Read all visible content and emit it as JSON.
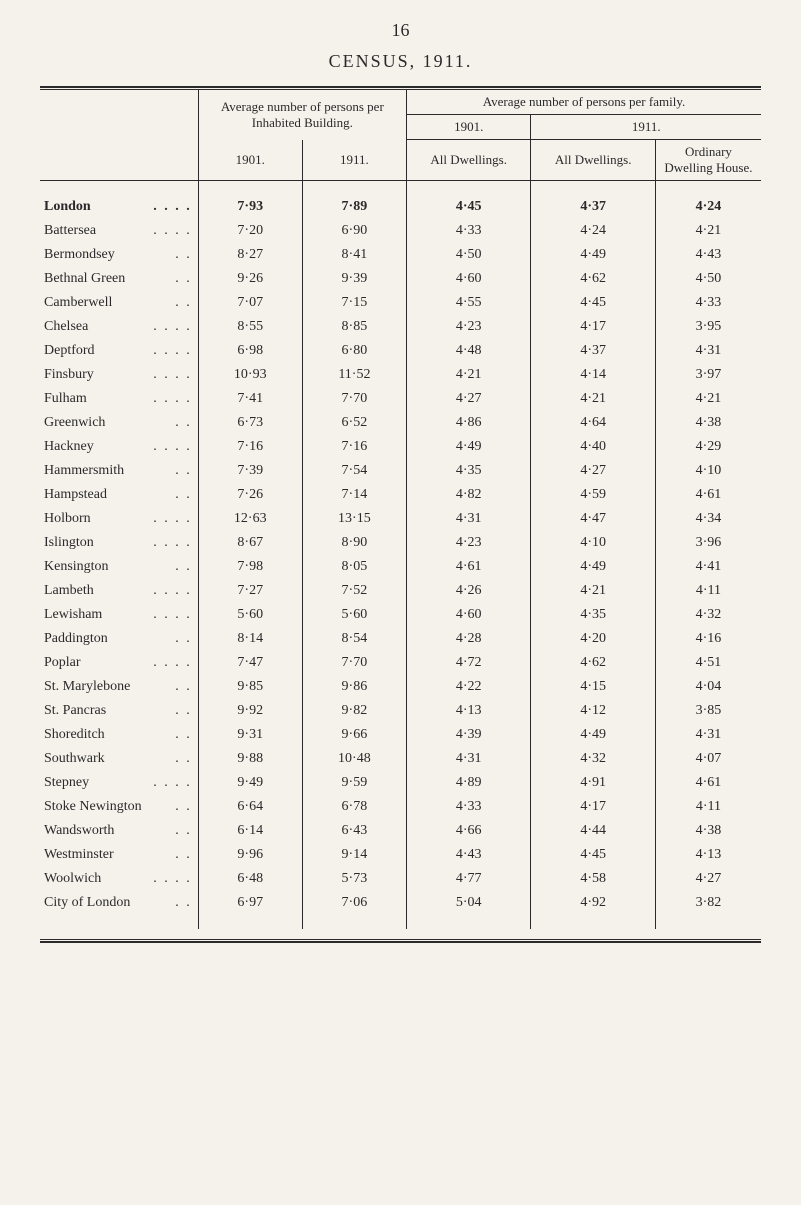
{
  "page_number": "16",
  "title": "CENSUS, 1911.",
  "headers": {
    "avg_persons": "Average number of persons per Inhabited Building.",
    "avg_family": "Average number of persons per family.",
    "year_1901": "1901.",
    "year_1911": "1911.",
    "all_dwellings": "All Dwellings.",
    "ordinary": "Ordinary Dwelling House."
  },
  "rows": [
    {
      "name": "London",
      "dots": ". .   . .",
      "a": "7·93",
      "b": "7·89",
      "c": "4·45",
      "d": "4·37",
      "e": "4·24",
      "bold": true
    },
    {
      "name": "Battersea",
      "dots": ". .   . .",
      "a": "7·20",
      "b": "6·90",
      "c": "4·33",
      "d": "4·24",
      "e": "4·21"
    },
    {
      "name": "Bermondsey",
      "dots": "  . .",
      "a": "8·27",
      "b": "8·41",
      "c": "4·50",
      "d": "4·49",
      "e": "4·43"
    },
    {
      "name": "Bethnal Green",
      "dots": "  . .",
      "a": "9·26",
      "b": "9·39",
      "c": "4·60",
      "d": "4·62",
      "e": "4·50"
    },
    {
      "name": "Camberwell",
      "dots": "  . .",
      "a": "7·07",
      "b": "7·15",
      "c": "4·55",
      "d": "4·45",
      "e": "4·33"
    },
    {
      "name": "Chelsea",
      "dots": ". .   . .",
      "a": "8·55",
      "b": "8·85",
      "c": "4·23",
      "d": "4·17",
      "e": "3·95"
    },
    {
      "name": "Deptford",
      "dots": ". .   . .",
      "a": "6·98",
      "b": "6·80",
      "c": "4·48",
      "d": "4·37",
      "e": "4·31"
    },
    {
      "name": "Finsbury",
      "dots": ". .   . .",
      "a": "10·93",
      "b": "11·52",
      "c": "4·21",
      "d": "4·14",
      "e": "3·97"
    },
    {
      "name": "Fulham",
      "dots": ". .   . .",
      "a": "7·41",
      "b": "7·70",
      "c": "4·27",
      "d": "4·21",
      "e": "4·21"
    },
    {
      "name": "Greenwich",
      "dots": "  . .",
      "a": "6·73",
      "b": "6·52",
      "c": "4·86",
      "d": "4·64",
      "e": "4·38"
    },
    {
      "name": "Hackney",
      "dots": ". .   . .",
      "a": "7·16",
      "b": "7·16",
      "c": "4·49",
      "d": "4·40",
      "e": "4·29"
    },
    {
      "name": "Hammersmith",
      "dots": "  . .",
      "a": "7·39",
      "b": "7·54",
      "c": "4·35",
      "d": "4·27",
      "e": "4·10"
    },
    {
      "name": "Hampstead",
      "dots": "  . .",
      "a": "7·26",
      "b": "7·14",
      "c": "4·82",
      "d": "4·59",
      "e": "4·61"
    },
    {
      "name": "Holborn",
      "dots": ". .   . .",
      "a": "12·63",
      "b": "13·15",
      "c": "4·31",
      "d": "4·47",
      "e": "4·34"
    },
    {
      "name": "Islington",
      "dots": ". .   . .",
      "a": "8·67",
      "b": "8·90",
      "c": "4·23",
      "d": "4·10",
      "e": "3·96"
    },
    {
      "name": "Kensington",
      "dots": "  . .",
      "a": "7·98",
      "b": "8·05",
      "c": "4·61",
      "d": "4·49",
      "e": "4·41"
    },
    {
      "name": "Lambeth",
      "dots": ". .   . .",
      "a": "7·27",
      "b": "7·52",
      "c": "4·26",
      "d": "4·21",
      "e": "4·11"
    },
    {
      "name": "Lewisham",
      "dots": ". .   . .",
      "a": "5·60",
      "b": "5·60",
      "c": "4·60",
      "d": "4·35",
      "e": "4·32"
    },
    {
      "name": "Paddington",
      "dots": "  . .",
      "a": "8·14",
      "b": "8·54",
      "c": "4·28",
      "d": "4·20",
      "e": "4·16"
    },
    {
      "name": "Poplar",
      "dots": ". .   . .",
      "a": "7·47",
      "b": "7·70",
      "c": "4·72",
      "d": "4·62",
      "e": "4·51"
    },
    {
      "name": "St. Marylebone",
      "dots": "  . .",
      "a": "9·85",
      "b": "9·86",
      "c": "4·22",
      "d": "4·15",
      "e": "4·04"
    },
    {
      "name": "St. Pancras",
      "dots": "  . .",
      "a": "9·92",
      "b": "9·82",
      "c": "4·13",
      "d": "4·12",
      "e": "3·85"
    },
    {
      "name": "Shoreditch",
      "dots": "  . .",
      "a": "9·31",
      "b": "9·66",
      "c": "4·39",
      "d": "4·49",
      "e": "4·31"
    },
    {
      "name": "Southwark",
      "dots": "  . .",
      "a": "9·88",
      "b": "10·48",
      "c": "4·31",
      "d": "4·32",
      "e": "4·07"
    },
    {
      "name": "Stepney",
      "dots": ". .   . .",
      "a": "9·49",
      "b": "9·59",
      "c": "4·89",
      "d": "4·91",
      "e": "4·61"
    },
    {
      "name": "Stoke Newington",
      "dots": ". .",
      "a": "6·64",
      "b": "6·78",
      "c": "4·33",
      "d": "4·17",
      "e": "4·11"
    },
    {
      "name": "Wandsworth",
      "dots": "  . .",
      "a": "6·14",
      "b": "6·43",
      "c": "4·66",
      "d": "4·44",
      "e": "4·38"
    },
    {
      "name": "Westminster",
      "dots": "  . .",
      "a": "9·96",
      "b": "9·14",
      "c": "4·43",
      "d": "4·45",
      "e": "4·13"
    },
    {
      "name": "Woolwich",
      "dots": ". .   . .",
      "a": "6·48",
      "b": "5·73",
      "c": "4·77",
      "d": "4·58",
      "e": "4·27"
    },
    {
      "name": "City of London",
      "dots": "  . .",
      "a": "6·97",
      "b": "7·06",
      "c": "5·04",
      "d": "4·92",
      "e": "3·82"
    }
  ]
}
